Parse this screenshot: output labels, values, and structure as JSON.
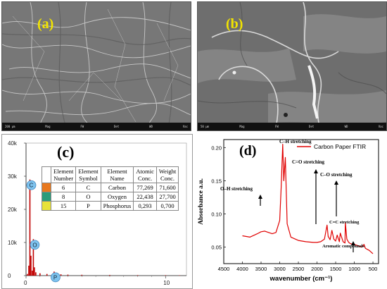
{
  "panel_a": {
    "label": "(a)",
    "scale_bar": "200 µm",
    "info_items": [
      "Mag",
      "FW",
      "Det",
      "WD",
      "Vac"
    ]
  },
  "panel_b": {
    "label": "(b)",
    "scale_bar": "50 µm",
    "info_items": [
      "Mag",
      "FW",
      "Det",
      "WD",
      "Vac"
    ]
  },
  "panel_c": {
    "label": "(c)",
    "table": {
      "headers": [
        [
          "Element",
          "Number"
        ],
        [
          "Element",
          "Symbol"
        ],
        [
          "Element",
          "Name"
        ],
        [
          "Atomic",
          "Conc."
        ],
        [
          "Weight",
          "Conc."
        ]
      ],
      "rows": [
        {
          "color": "#e8781e",
          "number": "6",
          "symbol": "C",
          "name": "Carbon",
          "atomic": "77,269",
          "weight": "71,600"
        },
        {
          "color": "#2a9c7a",
          "number": "8",
          "symbol": "O",
          "name": "Oxygen",
          "atomic": "22,438",
          "weight": "27,700"
        },
        {
          "color": "#e8e23a",
          "number": "15",
          "symbol": "P",
          "name": "Phosphorus",
          "atomic": "0,293",
          "weight": "0,700"
        }
      ]
    },
    "peak_labels": [
      "C",
      "O",
      "P"
    ]
  },
  "panel_d": {
    "label": "(d)",
    "annotations": [
      "C–H stretching",
      "C=O stretching",
      "O–H stretching",
      "C–O stretching",
      "C=C stretching",
      "Aromatic compounds"
    ]
  },
  "chart_data": [
    {
      "type": "bar",
      "title": "",
      "xlabel": "",
      "ylabel": "",
      "x_ticks": [
        "0",
        "10"
      ],
      "y_ticks": [
        "0",
        "10k",
        "20k",
        "30k",
        "40k"
      ],
      "ylim": [
        0,
        40000
      ],
      "xlim": [
        0,
        11.5
      ],
      "x": [
        0.1,
        0.2,
        0.277,
        0.35,
        0.45,
        0.525,
        0.6,
        0.7,
        1.0,
        1.5,
        2.013,
        2.5,
        3.0,
        4.0,
        6.0,
        8.0,
        10.0,
        11.0
      ],
      "values": [
        500,
        3000,
        29000,
        6000,
        1500,
        11000,
        2500,
        1000,
        700,
        500,
        1200,
        400,
        300,
        250,
        200,
        150,
        120,
        100
      ],
      "series_color": "#c00000"
    },
    {
      "type": "line",
      "title": "",
      "xlabel": "wavenumber (cm⁻¹)",
      "ylabel": "Absorbance a.u.",
      "x_ticks": [
        "4500",
        "4000",
        "3500",
        "3000",
        "2500",
        "2000",
        "1500",
        "1000",
        "500"
      ],
      "y_ticks": [
        "0.05",
        "0.10",
        "0.15",
        "0.20"
      ],
      "xlim": [
        4500,
        350
      ],
      "ylim": [
        0.025,
        0.212
      ],
      "legend": "top-right",
      "series": [
        {
          "name": "Carbon Paper FTIR",
          "color": "#e00000",
          "x": [
            4000,
            3800,
            3600,
            3500,
            3400,
            3300,
            3200,
            3100,
            3000,
            2960,
            2920,
            2890,
            2850,
            2800,
            2700,
            2500,
            2300,
            2100,
            2000,
            1900,
            1800,
            1730,
            1700,
            1650,
            1600,
            1550,
            1500,
            1460,
            1400,
            1377,
            1300,
            1250,
            1240,
            1200,
            1150,
            1100,
            1000,
            900,
            800,
            740,
            700,
            600,
            500
          ],
          "values": [
            0.067,
            0.065,
            0.07,
            0.073,
            0.074,
            0.072,
            0.07,
            0.072,
            0.09,
            0.14,
            0.205,
            0.15,
            0.185,
            0.085,
            0.065,
            0.06,
            0.058,
            0.057,
            0.057,
            0.058,
            0.062,
            0.083,
            0.066,
            0.061,
            0.075,
            0.062,
            0.059,
            0.068,
            0.058,
            0.071,
            0.058,
            0.056,
            0.087,
            0.062,
            0.057,
            0.055,
            0.054,
            0.052,
            0.05,
            0.054,
            0.048,
            0.045,
            0.04
          ]
        }
      ]
    }
  ]
}
